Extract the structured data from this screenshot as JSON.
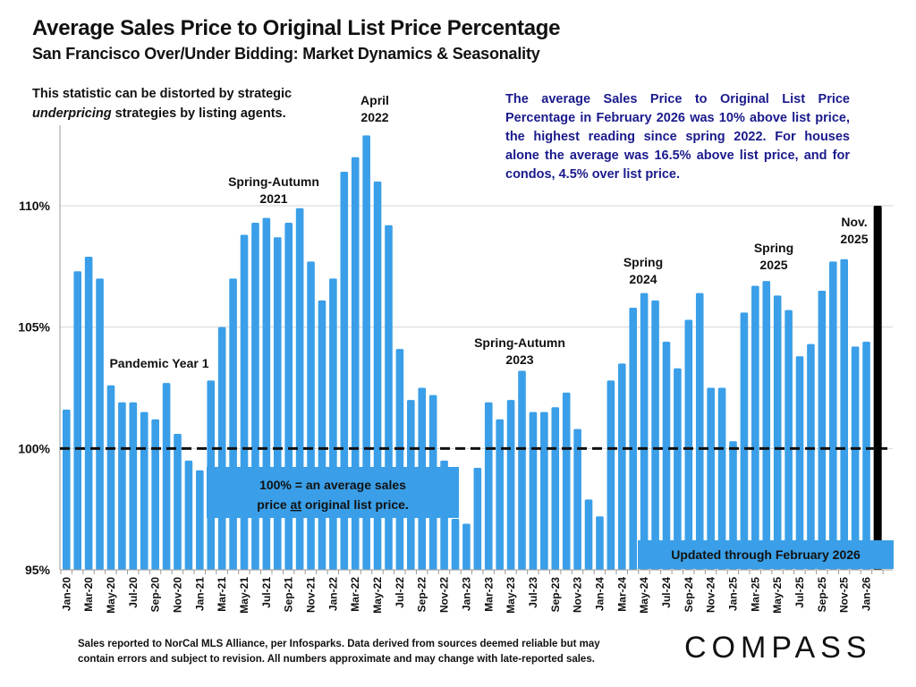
{
  "header": {
    "title": "Average Sales Price to Original List Price Percentage",
    "subtitle": "San Francisco Over/Under Bidding: Market Dynamics & Seasonality"
  },
  "notes": {
    "left_line1": "This statistic can be distorted by strategic",
    "left_line2_em": "underpricing",
    "left_line2_rest": " strategies by listing agents.",
    "right": "The average Sales Price to Original List Price Percentage in February 2026 was 10% above list price, the highest reading since spring 2022. For houses alone the average was 16.5% above list price, and for condos, 4.5% over list price."
  },
  "footer": {
    "line1": "Sales reported to NorCal MLS Alliance, per Infosparks. Data derived from sources deemed reliable but may",
    "line2": "contain errors and subject to revision. All numbers approximate and may change with late-reported sales.",
    "logo": "COMPASS"
  },
  "colors": {
    "bar": "#3a9fe8",
    "latest_bar": "#000000",
    "right_note": "#1a1a8c",
    "reference_line": "#111111"
  },
  "chart_data": {
    "type": "bar",
    "title": "Average Sales Price to Original List Price Percentage",
    "xlabel": "",
    "ylabel": "",
    "ylim": [
      95,
      113
    ],
    "yticks": [
      95,
      100,
      105,
      110
    ],
    "ytick_labels": [
      "95%",
      "100%",
      "105%",
      "110%"
    ],
    "grid": true,
    "reference_line": {
      "value": 100,
      "style": "dashed"
    },
    "categories": [
      "Jan-20",
      "Feb-20",
      "Mar-20",
      "Apr-20",
      "May-20",
      "Jun-20",
      "Jul-20",
      "Aug-20",
      "Sep-20",
      "Oct-20",
      "Nov-20",
      "Dec-20",
      "Jan-21",
      "Feb-21",
      "Mar-21",
      "Apr-21",
      "May-21",
      "Jun-21",
      "Jul-21",
      "Aug-21",
      "Sep-21",
      "Oct-21",
      "Nov-21",
      "Dec-21",
      "Jan-22",
      "Feb-22",
      "Mar-22",
      "Apr-22",
      "May-22",
      "Jun-22",
      "Jul-22",
      "Aug-22",
      "Sep-22",
      "Oct-22",
      "Nov-22",
      "Dec-22",
      "Jan-23",
      "Feb-23",
      "Mar-23",
      "Apr-23",
      "May-23",
      "Jun-23",
      "Jul-23",
      "Aug-23",
      "Sep-23",
      "Oct-23",
      "Nov-23",
      "Dec-23",
      "Jan-24",
      "Feb-24",
      "Mar-24",
      "Apr-24",
      "May-24",
      "Jun-24",
      "Jul-24",
      "Aug-24",
      "Sep-24",
      "Oct-24",
      "Nov-24",
      "Dec-24",
      "Jan-25",
      "Feb-25",
      "Mar-25",
      "Apr-25",
      "May-25",
      "Jun-25",
      "Jul-25",
      "Aug-25",
      "Sep-25",
      "Oct-25",
      "Nov-25",
      "Dec-25",
      "Jan-26",
      "Feb-26"
    ],
    "x_tick_labels": [
      "Jan-20",
      "Mar-20",
      "May-20",
      "Jul-20",
      "Sep-20",
      "Nov-20",
      "Jan-21",
      "Mar-21",
      "May-21",
      "Jul-21",
      "Sep-21",
      "Nov-21",
      "Jan-22",
      "Mar-22",
      "May-22",
      "Jul-22",
      "Sep-22",
      "Nov-22",
      "Jan-23",
      "Mar-23",
      "May-23",
      "Jul-23",
      "Sep-23",
      "Nov-23",
      "Jan-24",
      "Mar-24",
      "May-24",
      "Jul-24",
      "Sep-24",
      "Nov-24",
      "Jan-25",
      "Mar-25",
      "May-25",
      "Jul-25",
      "Sep-25",
      "Nov-25",
      "Jan-26"
    ],
    "values": [
      101.6,
      107.3,
      107.9,
      107.0,
      102.6,
      101.9,
      101.9,
      101.5,
      101.2,
      102.7,
      100.6,
      99.5,
      99.1,
      102.8,
      105.0,
      107.0,
      108.8,
      109.3,
      109.5,
      108.7,
      109.3,
      109.9,
      107.7,
      106.1,
      107.0,
      111.4,
      112.0,
      112.9,
      111.0,
      109.2,
      104.1,
      102.0,
      102.5,
      102.2,
      99.5,
      97.1,
      96.9,
      99.2,
      101.9,
      101.2,
      102.0,
      103.2,
      101.5,
      101.5,
      101.7,
      102.3,
      100.8,
      97.9,
      97.2,
      102.8,
      103.5,
      105.8,
      106.4,
      106.1,
      104.4,
      103.3,
      105.3,
      106.4,
      102.5,
      102.5,
      100.3,
      105.6,
      106.7,
      106.9,
      106.3,
      105.7,
      103.8,
      104.3,
      106.5,
      107.7,
      107.8,
      104.2,
      104.4,
      110.0
    ],
    "highlight": {
      "category": "Feb-26",
      "color": "#000000"
    },
    "annotations": [
      {
        "text_lines": [
          "April",
          "2022"
        ],
        "anchor": "Apr-22"
      },
      {
        "text_lines": [
          "Spring-Autumn",
          "2021"
        ],
        "anchor": "Jul-21"
      },
      {
        "text_lines": [
          "Pandemic Year 1"
        ],
        "anchor": "Aug-20"
      },
      {
        "text_lines": [
          "Spring-Autumn",
          "2023"
        ],
        "anchor": "Jun-23"
      },
      {
        "text_lines": [
          "Spring",
          "2024"
        ],
        "anchor": "May-24"
      },
      {
        "text_lines": [
          "Spring",
          "2025"
        ],
        "anchor": "Apr-25"
      },
      {
        "text_lines": [
          "Nov.",
          "2025"
        ],
        "anchor": "Nov-25"
      }
    ],
    "boxes": [
      {
        "text_lines": [
          "100% = an average sales",
          "price at original list price."
        ],
        "underline_word": "at"
      },
      {
        "text_lines": [
          "Updated through February 2026"
        ]
      }
    ]
  }
}
